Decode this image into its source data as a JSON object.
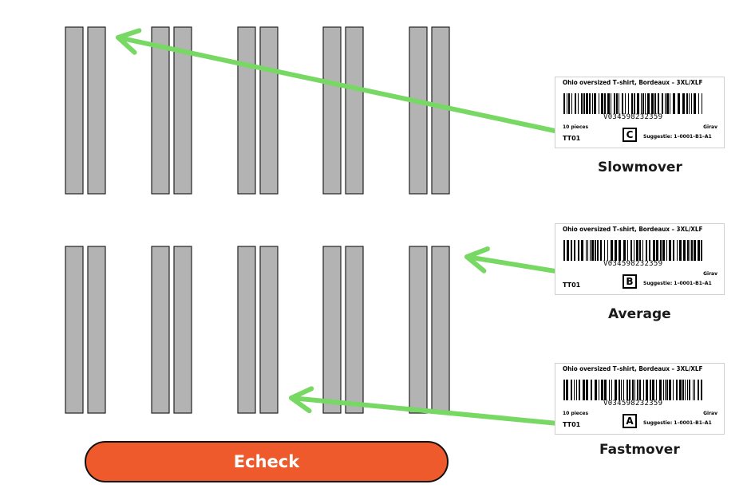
{
  "labels": [
    {
      "title": "Ohio oversized T–shirt, Bordeaux – 3XL/XLF",
      "barcode": "V034598232359",
      "pieces": "10 pieces",
      "location": "Girav",
      "code": "TT01",
      "class": "C",
      "suggestie": "Suggestie: 1–0001–B1–A1",
      "caption": "Slowmover"
    },
    {
      "title": "Ohio oversized T–shirt, Bordeaux – 3XL/XLF",
      "barcode": "V034598232359",
      "pieces": "",
      "location": "Girav",
      "code": "TT01",
      "class": "B",
      "suggestie": "Suggestie: 1–0001–B1–A1",
      "caption": "Average"
    },
    {
      "title": "Ohio oversized T–shirt, Bordeaux – 3XL/XLF",
      "barcode": "V034598232359",
      "pieces": "10 pieces",
      "location": "Girav",
      "code": "TT01",
      "class": "A",
      "suggestie": "Suggestie: 1–0001–B1–A1",
      "caption": "Fastmover"
    }
  ],
  "button": {
    "label": "Echeck"
  },
  "colors": {
    "rack": "#b3b3b3",
    "arrow": "#77d863",
    "button": "#ef5a2c"
  }
}
